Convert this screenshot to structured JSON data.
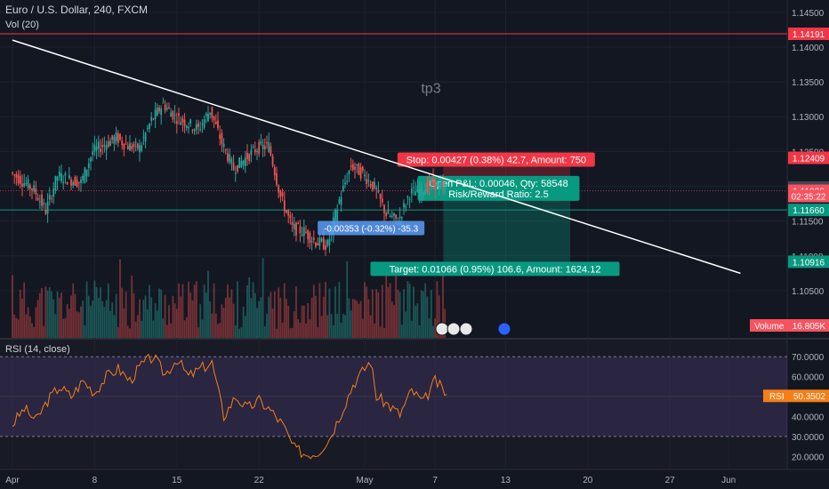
{
  "header": {
    "title": "Euro / U.S. Dollar, 240, FXCM",
    "indicator": "Vol (20)"
  },
  "rsi_panel": {
    "title": "RSI (14, close)"
  },
  "chart_data": {
    "type": "candlestick",
    "symbol": "Euro / U.S. Dollar",
    "timeframe": "240",
    "source": "FXCM",
    "price_axis": {
      "range": [
        1.0995,
        1.146
      ],
      "ticks": [
        "1.14500",
        "1.14000",
        "1.13500",
        "1.13000",
        "1.12500",
        "1.12000",
        "1.11500",
        "1.11000",
        "1.10500"
      ]
    },
    "time_axis": {
      "labels": [
        {
          "text": "Apr",
          "day": 0
        },
        {
          "text": "8",
          "day": 7
        },
        {
          "text": "15",
          "day": 14
        },
        {
          "text": "22",
          "day": 21
        },
        {
          "text": "May",
          "day": 30
        },
        {
          "text": "7",
          "day": 36
        },
        {
          "text": "13",
          "day": 42
        },
        {
          "text": "20",
          "day": 49
        },
        {
          "text": "27",
          "day": 56
        },
        {
          "text": "Jun",
          "day": 61
        }
      ]
    },
    "price_path": [
      [
        0,
        1.122
      ],
      [
        2,
        1.1195
      ],
      [
        3,
        1.1165
      ],
      [
        4,
        1.1215
      ],
      [
        6,
        1.1205
      ],
      [
        7,
        1.125
      ],
      [
        9,
        1.127
      ],
      [
        10,
        1.1258
      ],
      [
        11,
        1.1255
      ],
      [
        12,
        1.1295
      ],
      [
        13,
        1.1318
      ],
      [
        14,
        1.13
      ],
      [
        16,
        1.1282
      ],
      [
        17,
        1.131
      ],
      [
        18,
        1.1262
      ],
      [
        19,
        1.1225
      ],
      [
        20,
        1.124
      ],
      [
        21,
        1.1255
      ],
      [
        22,
        1.1258
      ],
      [
        23,
        1.1185
      ],
      [
        24,
        1.114
      ],
      [
        25,
        1.1135
      ],
      [
        26,
        1.112
      ],
      [
        27,
        1.1115
      ],
      [
        28,
        1.118
      ],
      [
        29,
        1.123
      ],
      [
        30,
        1.1218
      ],
      [
        31,
        1.1198
      ],
      [
        32,
        1.116
      ],
      [
        33,
        1.115
      ],
      [
        34,
        1.119
      ],
      [
        35,
        1.1195
      ],
      [
        36,
        1.1205
      ],
      [
        37,
        1.1196
      ]
    ],
    "trendline": {
      "from": [
        0,
        1.141
      ],
      "to": [
        62,
        1.1075
      ]
    },
    "horizontal_lines": [
      {
        "price": 1.14191,
        "color": "#f23645"
      },
      {
        "price": 1.1166,
        "color": "#089981"
      }
    ],
    "position": {
      "stop_label": "Stop: 0.00427 (0.38%) 42.7, Amount: 750",
      "pnl_label": "Open P&L: 0.00046, Qty: 58548",
      "rr_label": "Risk/Reward Ratio: 2.5",
      "target_label": "Target: 0.01066 (0.95%) 106.6, Amount: 1624.12",
      "stop_price": 1.12409,
      "entry_price": 1.11982,
      "target_price": 1.10916
    },
    "measure_label": "-0.00353 (-0.32%) -35.3",
    "annotation_text": "tp3",
    "price_badges": [
      {
        "text": "1.14191",
        "color": "#f23645",
        "price": 1.14191
      },
      {
        "text": "1.12409",
        "color": "#f23645",
        "price": 1.12409
      },
      {
        "text": "1.11982",
        "color": "#434651",
        "price": 1.11982
      },
      {
        "text": "1.11936",
        "color": "#f7525f",
        "price": 1.11936
      },
      {
        "text": "02:35:22",
        "color": "#f7525f",
        "price": 1.1186
      },
      {
        "text": "1.11660",
        "color": "#089981",
        "price": 1.1166
      },
      {
        "text": "1.10916",
        "color": "#089981",
        "price": 1.10916
      }
    ],
    "volume": {
      "label": "Volume",
      "value": "16.805K"
    },
    "event_markers": [
      "2",
      "6",
      "7",
      "3"
    ],
    "rsi": {
      "range": [
        17,
        75
      ],
      "ticks": [
        "70.0000",
        "60.0000",
        "50.0000",
        "40.0000",
        "30.0000",
        "20.0000"
      ],
      "band": [
        30,
        70
      ],
      "value": "50.3502",
      "path": [
        [
          0,
          36
        ],
        [
          1,
          44
        ],
        [
          2,
          38
        ],
        [
          3,
          48
        ],
        [
          4,
          55
        ],
        [
          5,
          50
        ],
        [
          6,
          58
        ],
        [
          7,
          52
        ],
        [
          8,
          60
        ],
        [
          9,
          64
        ],
        [
          10,
          58
        ],
        [
          11,
          66
        ],
        [
          12,
          70
        ],
        [
          13,
          61
        ],
        [
          14,
          69
        ],
        [
          15,
          60
        ],
        [
          16,
          64
        ],
        [
          17,
          67
        ],
        [
          18,
          40
        ],
        [
          19,
          50
        ],
        [
          20,
          44
        ],
        [
          21,
          48
        ],
        [
          22,
          43
        ],
        [
          23,
          36
        ],
        [
          24,
          24
        ],
        [
          25,
          21
        ],
        [
          26,
          22
        ],
        [
          27,
          29
        ],
        [
          28,
          42
        ],
        [
          29,
          56
        ],
        [
          30,
          64
        ],
        [
          30.5,
          68
        ],
        [
          31,
          50
        ],
        [
          32,
          46
        ],
        [
          33,
          41
        ],
        [
          34,
          53
        ],
        [
          35,
          47
        ],
        [
          36,
          58
        ],
        [
          37,
          51
        ]
      ]
    }
  }
}
